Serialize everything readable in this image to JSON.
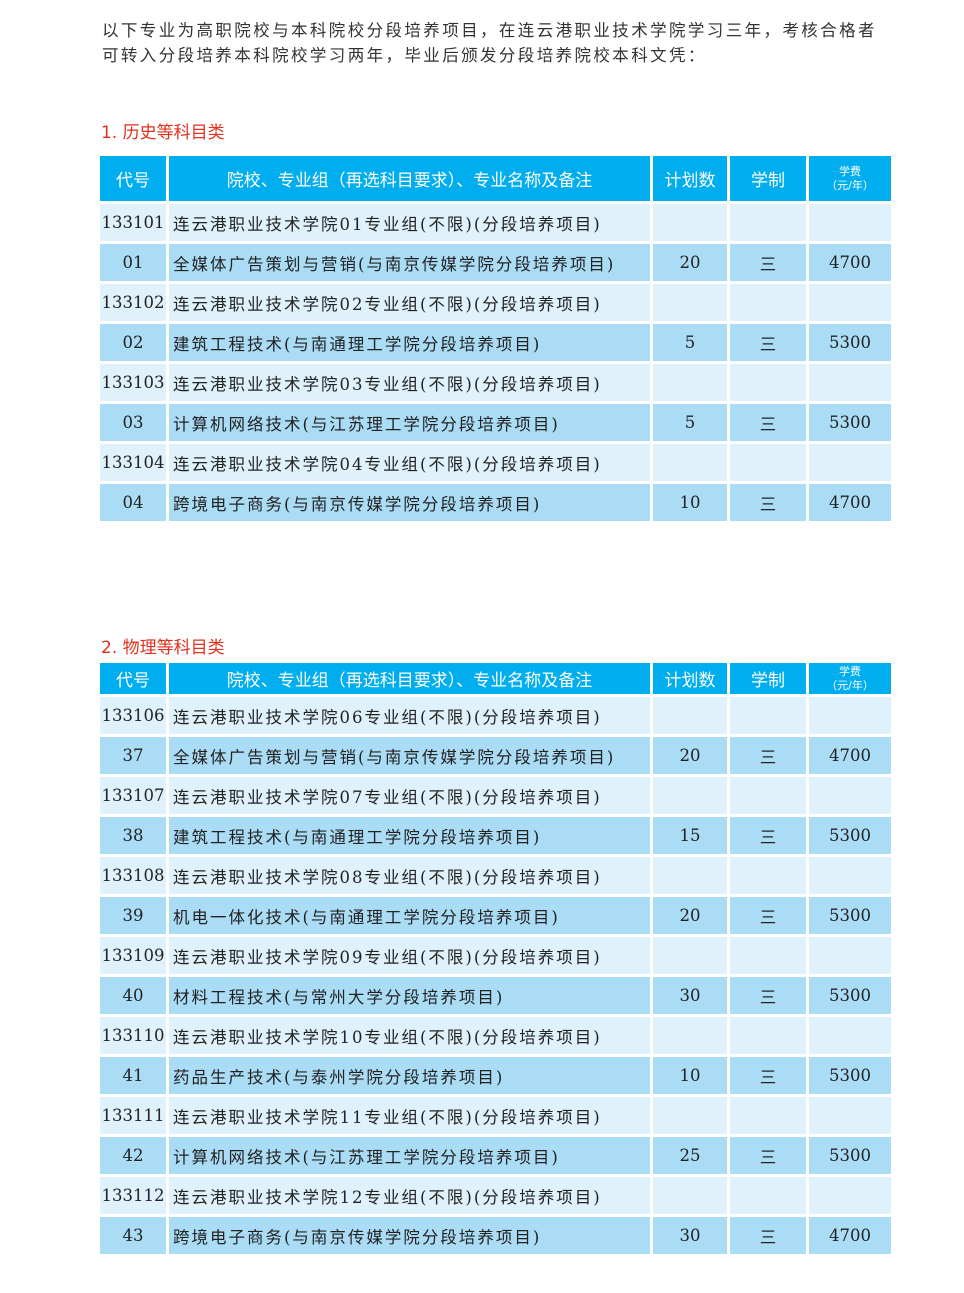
{
  "intro": "以下专业为高职院校与本科院校分段培养项目，在连云港职业技术学院学习三年，考核合格者可转入分段培养本科院校学习两年，毕业后颁发分段培养院校本科文凭：",
  "headers": {
    "code": "代号",
    "name": "院校、专业组（再选科目要求）、专业名称及备注",
    "plan": "计划数",
    "years": "学制",
    "fee1": "学费",
    "fee2": "（元/年）"
  },
  "sections": [
    {
      "title": "1. 历史等科目类",
      "rows": [
        [
          "133101",
          "连云港职业技术学院01专业组(不限)(分段培养项目)",
          "",
          "",
          ""
        ],
        [
          "01",
          "全媒体广告策划与营销(与南京传媒学院分段培养项目)",
          "20",
          "三",
          "4700"
        ],
        [
          "133102",
          "连云港职业技术学院02专业组(不限)(分段培养项目)",
          "",
          "",
          ""
        ],
        [
          "02",
          "建筑工程技术(与南通理工学院分段培养项目)",
          "5",
          "三",
          "5300"
        ],
        [
          "133103",
          "连云港职业技术学院03专业组(不限)(分段培养项目)",
          "",
          "",
          ""
        ],
        [
          "03",
          "计算机网络技术(与江苏理工学院分段培养项目)",
          "5",
          "三",
          "5300"
        ],
        [
          "133104",
          "连云港职业技术学院04专业组(不限)(分段培养项目)",
          "",
          "",
          ""
        ],
        [
          "04",
          "跨境电子商务(与南京传媒学院分段培养项目)",
          "10",
          "三",
          "4700"
        ]
      ]
    },
    {
      "title": "2. 物理等科目类",
      "rows": [
        [
          "133106",
          "连云港职业技术学院06专业组(不限)(分段培养项目)",
          "",
          "",
          ""
        ],
        [
          "37",
          "全媒体广告策划与营销(与南京传媒学院分段培养项目)",
          "20",
          "三",
          "4700"
        ],
        [
          "133107",
          "连云港职业技术学院07专业组(不限)(分段培养项目)",
          "",
          "",
          ""
        ],
        [
          "38",
          "建筑工程技术(与南通理工学院分段培养项目)",
          "15",
          "三",
          "5300"
        ],
        [
          "133108",
          "连云港职业技术学院08专业组(不限)(分段培养项目)",
          "",
          "",
          ""
        ],
        [
          "39",
          "机电一体化技术(与南通理工学院分段培养项目)",
          "20",
          "三",
          "5300"
        ],
        [
          "133109",
          "连云港职业技术学院09专业组(不限)(分段培养项目)",
          "",
          "",
          ""
        ],
        [
          "40",
          "材料工程技术(与常州大学分段培养项目)",
          "30",
          "三",
          "5300"
        ],
        [
          "133110",
          "连云港职业技术学院10专业组(不限)(分段培养项目)",
          "",
          "",
          ""
        ],
        [
          "41",
          "药品生产技术(与泰州学院分段培养项目)",
          "10",
          "三",
          "5300"
        ],
        [
          "133111",
          "连云港职业技术学院11专业组(不限)(分段培养项目)",
          "",
          "",
          ""
        ],
        [
          "42",
          "计算机网络技术(与江苏理工学院分段培养项目)",
          "25",
          "三",
          "5300"
        ],
        [
          "133112",
          "连云港职业技术学院12专业组(不限)(分段培养项目)",
          "",
          "",
          ""
        ],
        [
          "43",
          "跨境电子商务(与南京传媒学院分段培养项目)",
          "30",
          "三",
          "4700"
        ]
      ]
    }
  ]
}
